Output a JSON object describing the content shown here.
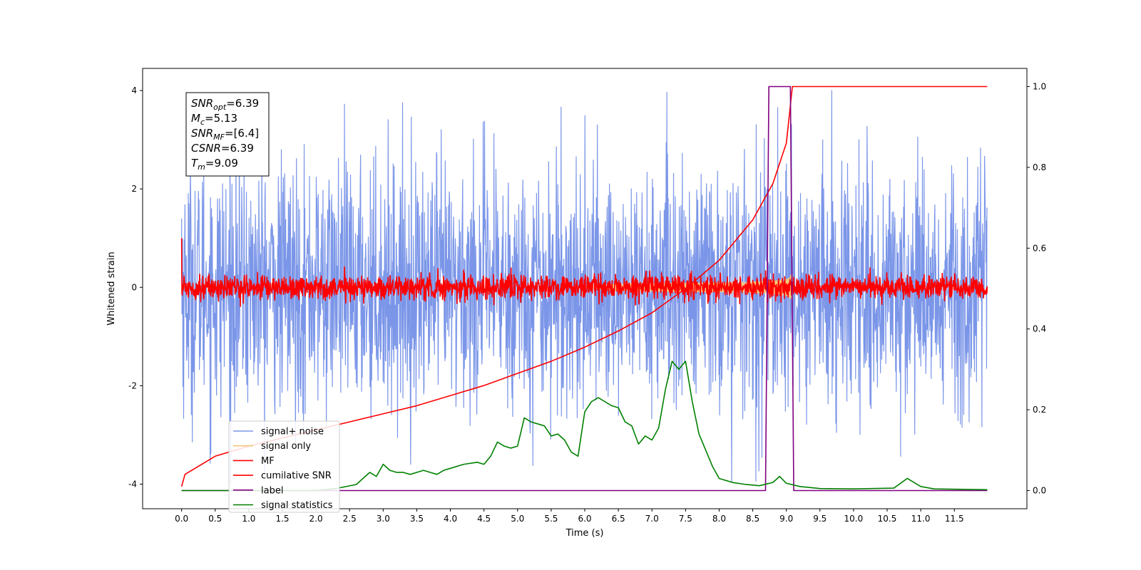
{
  "chart_data": {
    "type": "line",
    "xlabel": "Time (s)",
    "ylabel": "Whitened strain",
    "xlim": [
      -0.58,
      12.58
    ],
    "ylim": [
      -4.5,
      4.45
    ],
    "y2lim": [
      -0.045,
      1.045
    ],
    "x_ticks": [
      "0.0",
      "0.5",
      "1.0",
      "1.5",
      "2.0",
      "2.5",
      "3.0",
      "3.5",
      "4.0",
      "4.5",
      "5.0",
      "5.5",
      "6.0",
      "6.5",
      "7.0",
      "7.5",
      "8.0",
      "8.5",
      "9.0",
      "9.5",
      "10.0",
      "10.5",
      "11.0",
      "11.5"
    ],
    "y_ticks": [
      "-4",
      "-2",
      "0",
      "2",
      "4"
    ],
    "y2_ticks": [
      "0.0",
      "0.2",
      "0.4",
      "0.6",
      "0.8",
      "1.0"
    ],
    "annotation": {
      "lines": [
        {
          "name": "SNR",
          "sub": "opt",
          "value": "=6.39"
        },
        {
          "name": "M",
          "sub": "c",
          "value": "=5.13"
        },
        {
          "name": "SNR",
          "sub": "MF",
          "value": "=[6.4]"
        },
        {
          "name": "CSNR",
          "sub": "",
          "value": "=6.39"
        },
        {
          "name": "T",
          "sub": "m",
          "value": "=9.09"
        }
      ]
    },
    "series": [
      {
        "name": "signal+ noise",
        "color": "#7b96e8",
        "axis": "left",
        "kind": "noise",
        "amplitude_std": 1.25,
        "x_range": [
          0,
          11.99
        ]
      },
      {
        "name": "signal only",
        "color": "#f5c67a",
        "axis": "left",
        "kind": "chirp",
        "peak_amplitude": 0.45,
        "peak_time": 9.09
      },
      {
        "name": "MF",
        "color": "#ff0000",
        "axis": "left",
        "kind": "noise",
        "amplitude_std": 0.12,
        "x_range": [
          0,
          11.99
        ]
      },
      {
        "name": "cumilative SNR",
        "color": "#ff0000",
        "axis": "right",
        "x": [
          0.0,
          0.05,
          0.5,
          1.0,
          1.5,
          2.0,
          2.5,
          3.0,
          3.5,
          4.0,
          4.5,
          5.0,
          5.5,
          6.0,
          6.5,
          7.0,
          7.5,
          8.0,
          8.5,
          8.8,
          9.0,
          9.09,
          9.5,
          10.0,
          11.0,
          11.99
        ],
        "y": [
          0.01,
          0.04,
          0.085,
          0.11,
          0.13,
          0.15,
          0.17,
          0.19,
          0.21,
          0.235,
          0.26,
          0.29,
          0.32,
          0.355,
          0.395,
          0.44,
          0.5,
          0.57,
          0.67,
          0.76,
          0.86,
          1.0,
          1.0,
          1.0,
          1.0,
          1.0
        ]
      },
      {
        "name": "label",
        "color": "#800080",
        "axis": "right",
        "x": [
          0.0,
          8.69,
          8.74,
          9.06,
          9.11,
          11.99
        ],
        "y": [
          0.0,
          0.0,
          1.0,
          1.0,
          0.0,
          0.0
        ]
      },
      {
        "name": "signal statistics",
        "color": "#008000",
        "axis": "right",
        "x": [
          0.0,
          2.0,
          2.3,
          2.6,
          2.7,
          2.8,
          2.9,
          3.0,
          3.1,
          3.2,
          3.3,
          3.4,
          3.5,
          3.6,
          3.7,
          3.8,
          3.9,
          4.0,
          4.2,
          4.4,
          4.5,
          4.6,
          4.7,
          4.8,
          4.9,
          5.0,
          5.1,
          5.2,
          5.3,
          5.4,
          5.5,
          5.6,
          5.7,
          5.8,
          5.9,
          6.0,
          6.1,
          6.2,
          6.3,
          6.4,
          6.5,
          6.6,
          6.7,
          6.8,
          6.9,
          7.0,
          7.1,
          7.2,
          7.3,
          7.4,
          7.5,
          7.6,
          7.7,
          7.8,
          7.9,
          8.0,
          8.2,
          8.4,
          8.6,
          8.8,
          8.9,
          9.0,
          9.2,
          9.5,
          10.0,
          10.6,
          10.8,
          11.0,
          11.2,
          11.99
        ],
        "y": [
          0.0,
          0.0,
          0.005,
          0.015,
          0.03,
          0.045,
          0.035,
          0.065,
          0.05,
          0.045,
          0.045,
          0.04,
          0.045,
          0.05,
          0.045,
          0.04,
          0.05,
          0.055,
          0.065,
          0.07,
          0.065,
          0.085,
          0.12,
          0.11,
          0.105,
          0.11,
          0.18,
          0.17,
          0.165,
          0.16,
          0.135,
          0.14,
          0.125,
          0.095,
          0.085,
          0.195,
          0.22,
          0.23,
          0.22,
          0.21,
          0.205,
          0.17,
          0.16,
          0.115,
          0.135,
          0.125,
          0.155,
          0.25,
          0.32,
          0.3,
          0.32,
          0.22,
          0.14,
          0.1,
          0.06,
          0.03,
          0.02,
          0.015,
          0.012,
          0.02,
          0.035,
          0.018,
          0.01,
          0.005,
          0.004,
          0.006,
          0.03,
          0.01,
          0.004,
          0.002
        ]
      }
    ],
    "legend": {
      "location": "lower-left",
      "entries": [
        "signal+ noise",
        "signal only",
        "MF",
        "cumilative SNR",
        "label",
        "signal statistics"
      ]
    }
  }
}
